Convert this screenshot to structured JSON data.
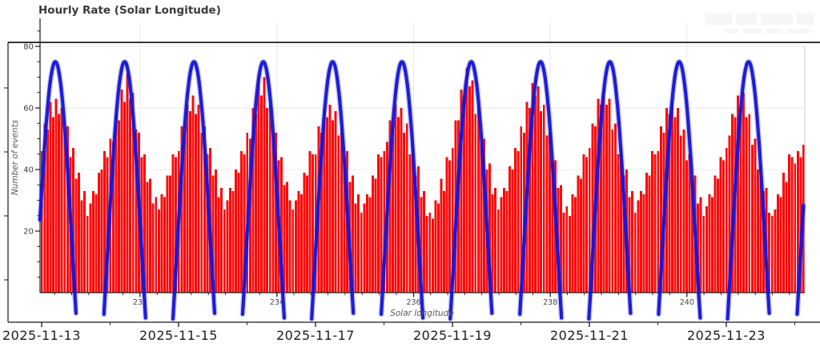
{
  "title": "Hourly Rate (Solar Longitude)",
  "colors": {
    "bars": "#fb0a0a",
    "model_curve": "#1414d6",
    "model_glow": "#5050e0",
    "grid": "#e9e9e9",
    "frame": "#1a1a1a",
    "inner_right_spine": "#cccccc",
    "tick_label": "#3c3c3c",
    "date_label": "#1c1c1c",
    "axis_label": "#5a5a5a",
    "title": "#3a3a3a"
  },
  "chart_data": {
    "type": "bar+line",
    "title": "Hourly Rate (Solar Longitude)",
    "xlabel": "Solar longitude",
    "ylabel": "Number of events",
    "ylim": [
      0,
      89
    ],
    "grid": true,
    "bar_series_name": "hourly event counts",
    "hours_per_bar": 1,
    "hourly_counts": [
      46,
      55,
      53,
      62,
      57,
      63,
      58,
      60,
      52,
      54,
      44,
      47,
      37,
      39,
      30,
      33,
      25,
      29,
      33,
      32,
      39,
      40,
      46,
      44,
      50,
      49,
      58,
      56,
      66,
      62,
      71,
      63,
      65,
      53,
      52,
      44,
      45,
      36,
      37,
      29,
      31,
      27,
      32,
      31,
      38,
      38,
      45,
      44,
      46,
      54,
      52,
      61,
      59,
      64,
      58,
      61,
      52,
      54,
      45,
      47,
      38,
      40,
      31,
      34,
      27,
      30,
      34,
      33,
      40,
      39,
      46,
      45,
      52,
      50,
      60,
      58,
      69,
      64,
      70,
      60,
      61,
      51,
      52,
      43,
      44,
      35,
      36,
      30,
      27,
      30,
      33,
      32,
      39,
      38,
      46,
      45,
      45,
      54,
      52,
      60,
      57,
      61,
      56,
      59,
      51,
      53,
      43,
      46,
      36,
      38,
      29,
      32,
      26,
      29,
      32,
      31,
      38,
      37,
      45,
      44,
      46,
      49,
      56,
      54,
      61,
      57,
      60,
      52,
      55,
      45,
      48,
      38,
      41,
      31,
      33,
      25,
      26,
      24,
      30,
      29,
      37,
      33,
      44,
      43,
      47,
      56,
      56,
      66,
      64,
      73,
      67,
      69,
      58,
      60,
      48,
      50,
      40,
      42,
      32,
      34,
      27,
      31,
      34,
      33,
      41,
      40,
      47,
      46,
      54,
      52,
      62,
      60,
      68,
      64,
      67,
      59,
      61,
      51,
      52,
      42,
      43,
      34,
      35,
      26,
      28,
      25,
      32,
      31,
      38,
      37,
      45,
      44,
      47,
      55,
      54,
      63,
      61,
      66,
      61,
      63,
      53,
      55,
      45,
      47,
      38,
      40,
      31,
      33,
      26,
      30,
      33,
      32,
      39,
      38,
      46,
      45,
      46,
      54,
      52,
      60,
      58,
      62,
      57,
      60,
      51,
      53,
      43,
      45,
      36,
      38,
      29,
      31,
      25,
      28,
      32,
      31,
      38,
      37,
      44,
      43,
      47,
      51,
      58,
      57,
      64,
      60,
      65,
      57,
      58,
      48,
      50,
      40,
      42,
      33,
      34,
      26,
      25,
      27,
      32,
      31,
      39,
      36,
      45,
      44,
      42,
      46,
      44,
      48
    ],
    "y_ticks": [
      20,
      40,
      60,
      80
    ],
    "y_minor_step": 5,
    "solar_longitude_ticks": {
      "labels": [
        "232",
        "234",
        "236",
        "238",
        "240"
      ],
      "hours": [
        34.5,
        82.5,
        130.4,
        178.3,
        226.2
      ],
      "minor_step_deg": 0.25,
      "minor_step_hours": 5.99
    },
    "date_ticks": {
      "labels": [
        "2025-11-13",
        "2025-11-15",
        "2025-11-17",
        "2025-11-19",
        "2025-11-21",
        "2025-11-23"
      ],
      "hours": [
        0,
        48,
        96,
        144,
        192,
        240
      ],
      "minor_hours": [
        24,
        72,
        120,
        168,
        216,
        264
      ]
    },
    "model_curve": {
      "shape": "sinusoid",
      "offset": 12,
      "amplitude": 63,
      "period_hours": 24.3,
      "first_peak_hour": 4.8,
      "peak_value": 75,
      "start_hour": -0.56,
      "end_hour": 267.2
    }
  }
}
